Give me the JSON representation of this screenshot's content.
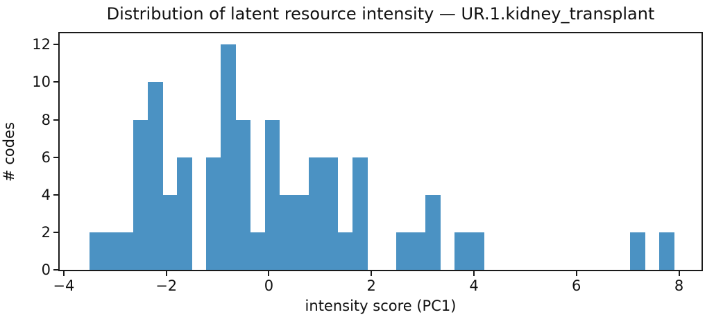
{
  "chart_data": {
    "type": "bar",
    "subtype": "histogram",
    "title": "Distribution of latent resource intensity — UR.1.kidney_transplant",
    "xlabel": "intensity score (PC1)",
    "ylabel": "# codes",
    "bin_start": -3.5,
    "bin_width": 0.285,
    "counts": [
      2,
      2,
      2,
      8,
      10,
      4,
      6,
      0,
      6,
      12,
      8,
      2,
      8,
      4,
      4,
      6,
      6,
      2,
      6,
      0,
      0,
      2,
      2,
      4,
      0,
      2,
      2,
      0,
      0,
      0,
      0,
      0,
      0,
      0,
      0,
      0,
      0,
      2,
      0,
      2
    ],
    "xlim": [
      -4.08,
      8.44
    ],
    "ylim": [
      0,
      12.6
    ],
    "xticks": [
      -4,
      -2,
      0,
      2,
      4,
      6,
      8
    ],
    "xtick_labels": [
      "−4",
      "−2",
      "0",
      "2",
      "4",
      "6",
      "8"
    ],
    "yticks": [
      0,
      2,
      4,
      6,
      8,
      10,
      12
    ],
    "ytick_labels": [
      "0",
      "2",
      "4",
      "6",
      "8",
      "10",
      "12"
    ],
    "grid": false,
    "colors": {
      "bar": "#4b92c3",
      "axis": "#1a1a1a",
      "text": "#111111",
      "background": "#ffffff"
    }
  }
}
